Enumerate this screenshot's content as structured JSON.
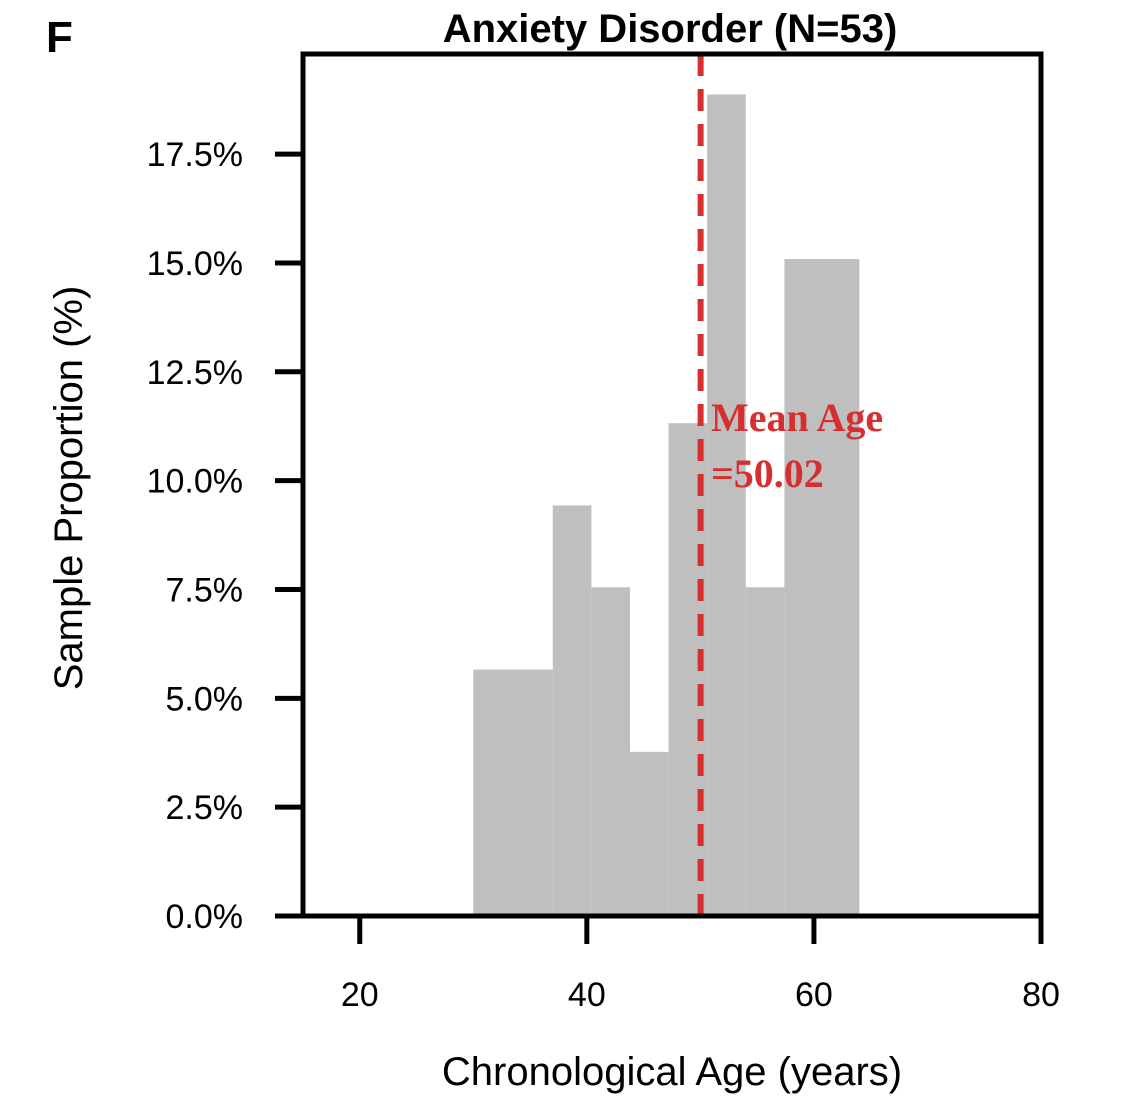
{
  "panel_letter": "F",
  "colors": {
    "bar": "#bfbfbf",
    "mean_line": "#d62f30",
    "axes": "#000000",
    "background": "#ffffff"
  },
  "chart_data": {
    "type": "bar",
    "title": "Anxiety Disorder (N=53)",
    "xlabel": "Chronological Age (years)",
    "ylabel": "Sample Proportion (%)",
    "xlim": [
      15,
      80
    ],
    "ylim": [
      0,
      19.8
    ],
    "x_ticks": [
      20,
      40,
      60,
      80
    ],
    "x_tick_labels": [
      "20",
      "40",
      "60",
      "80"
    ],
    "y_ticks": [
      0,
      2.5,
      5,
      7.5,
      10,
      12.5,
      15,
      17.5
    ],
    "y_tick_labels": [
      "0.0%",
      "2.5%",
      "5.0%",
      "7.5%",
      "10.0%",
      "12.5%",
      "15.0%",
      "17.5%"
    ],
    "bins": [
      {
        "x0": 30,
        "x1": 37,
        "value": 5.66
      },
      {
        "x0": 37,
        "x1": 40.4,
        "value": 9.43
      },
      {
        "x0": 40.4,
        "x1": 43.8,
        "value": 7.55
      },
      {
        "x0": 43.8,
        "x1": 47.2,
        "value": 3.77
      },
      {
        "x0": 47.2,
        "x1": 50.6,
        "value": 11.32
      },
      {
        "x0": 50.6,
        "x1": 54,
        "value": 18.87
      },
      {
        "x0": 54,
        "x1": 57.4,
        "value": 7.55
      },
      {
        "x0": 57.4,
        "x1": 64,
        "value": 15.09
      }
    ],
    "mean_line": {
      "x": 50.02,
      "style": "dashed"
    },
    "annotation": {
      "line1": "Mean Age",
      "line2": "=50.02"
    },
    "grid": false,
    "legend": "none"
  }
}
